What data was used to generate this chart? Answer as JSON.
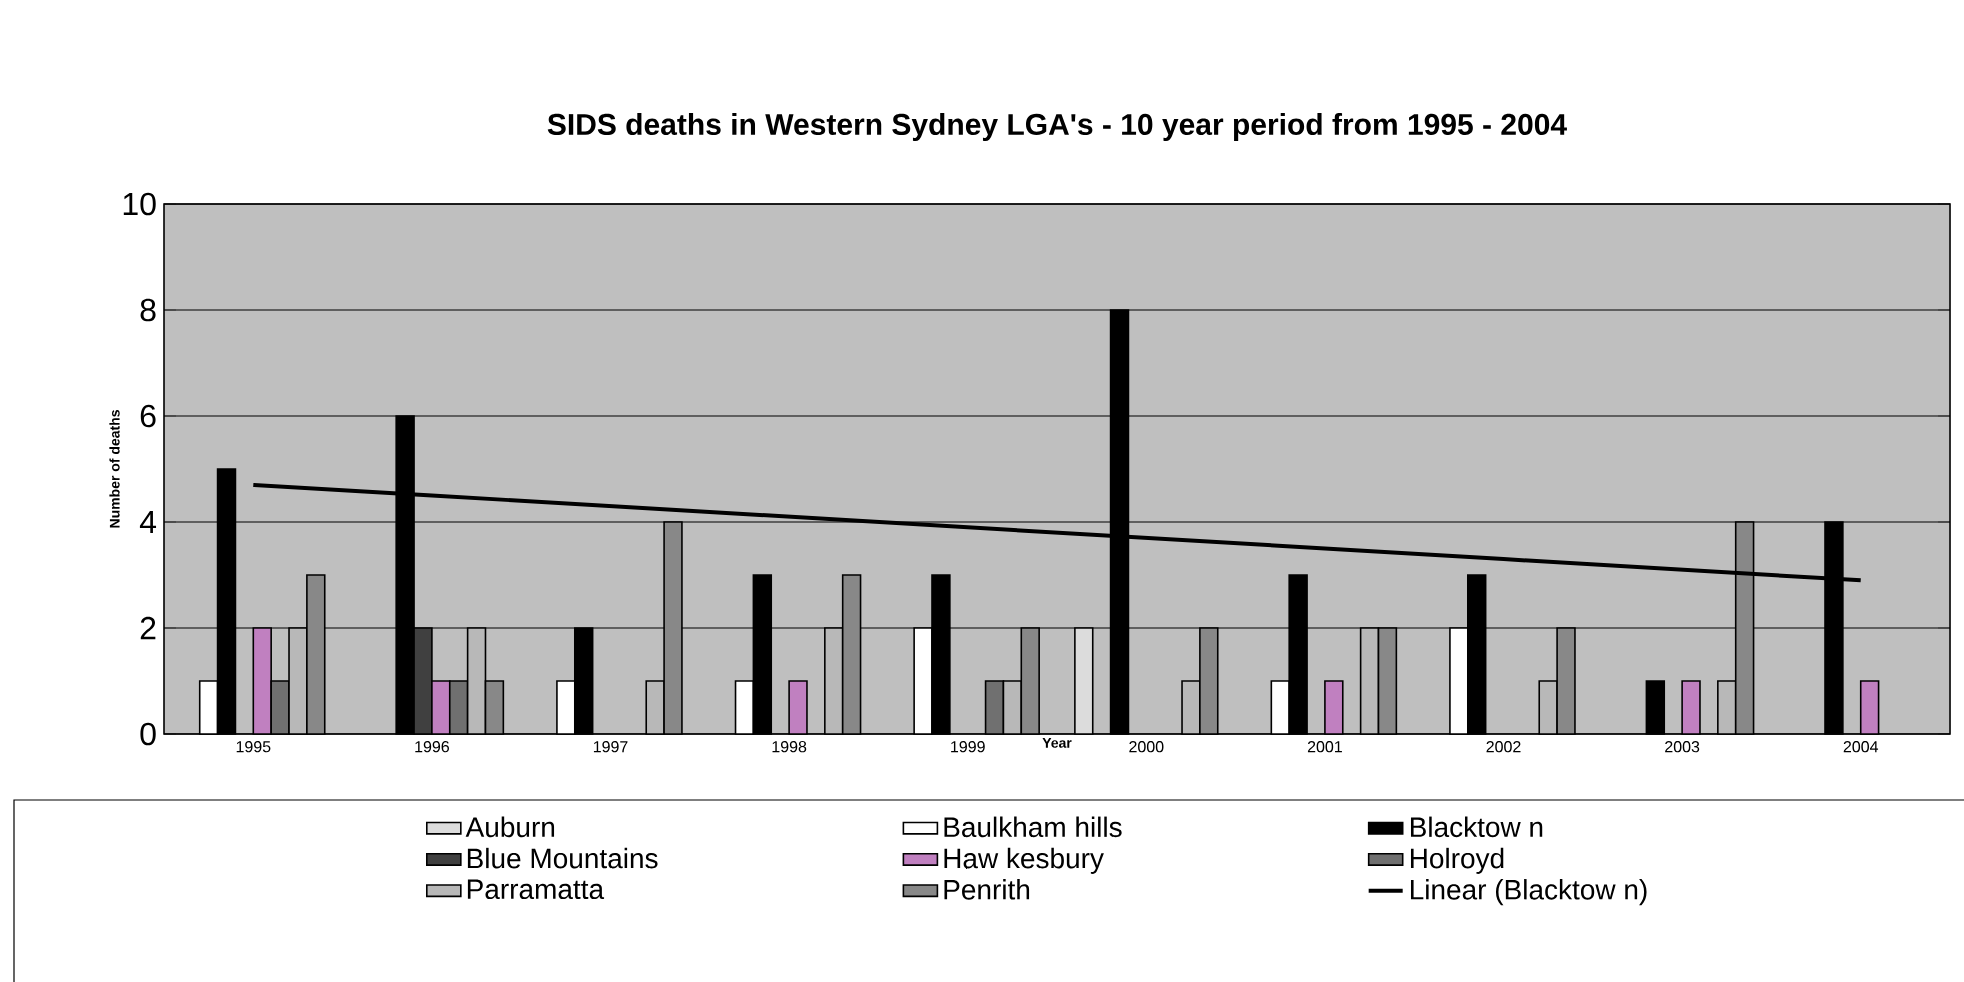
{
  "chart_data": {
    "type": "bar",
    "title": "SIDS deaths in Western Sydney LGA's - 10 year period from 1995 - 2004",
    "xlabel": "Year",
    "ylabel": "Number of deaths",
    "categories": [
      "1995",
      "1996",
      "1997",
      "1998",
      "1999",
      "2000",
      "2001",
      "2002",
      "2003",
      "2004"
    ],
    "series": [
      {
        "name": "Auburn",
        "color": "#dcdcdc",
        "values": [
          null,
          null,
          null,
          null,
          null,
          2,
          null,
          null,
          null,
          null
        ]
      },
      {
        "name": "Baulkham hills",
        "color": "#ffffff",
        "values": [
          1,
          null,
          1,
          1,
          2,
          null,
          1,
          2,
          null,
          null
        ]
      },
      {
        "name": "Blacktow n",
        "color": "#000000",
        "values": [
          5,
          6,
          2,
          3,
          3,
          8,
          3,
          3,
          1,
          4
        ]
      },
      {
        "name": "Blue Mountains",
        "color": "#404040",
        "values": [
          null,
          2,
          null,
          null,
          null,
          null,
          null,
          null,
          null,
          null
        ]
      },
      {
        "name": "Haw kesbury",
        "color": "#c080c0",
        "values": [
          2,
          1,
          null,
          1,
          null,
          null,
          1,
          null,
          1,
          1
        ]
      },
      {
        "name": "Holroyd",
        "color": "#707070",
        "values": [
          1,
          1,
          null,
          null,
          1,
          null,
          null,
          null,
          null,
          null
        ]
      },
      {
        "name": "Parramatta",
        "color": "#b8b8b8",
        "values": [
          2,
          2,
          1,
          2,
          1,
          1,
          2,
          1,
          1,
          null
        ]
      },
      {
        "name": "Penrith",
        "color": "#888888",
        "values": [
          3,
          1,
          4,
          3,
          2,
          2,
          2,
          2,
          4,
          null
        ]
      },
      {
        "name": "Linear (Blacktow n)",
        "type": "line",
        "color": "#000000",
        "values": [
          4.7,
          4.5,
          4.3,
          4.1,
          3.9,
          3.7,
          3.5,
          3.3,
          3.1,
          2.9
        ]
      }
    ],
    "ylim": [
      0,
      10
    ],
    "yticks": [
      0,
      2,
      4,
      6,
      8,
      10
    ],
    "grid": "y",
    "legend": "bottom"
  }
}
